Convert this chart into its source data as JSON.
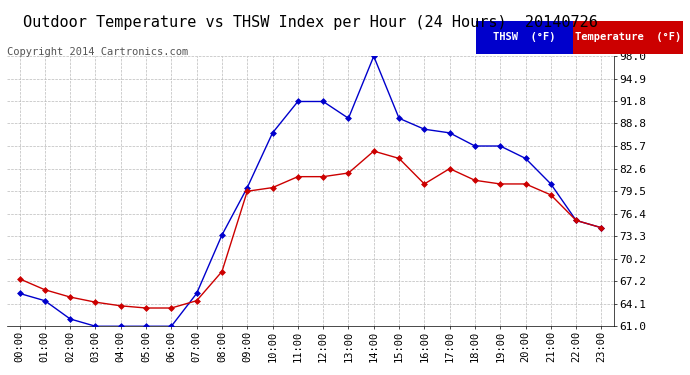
{
  "title": "Outdoor Temperature vs THSW Index per Hour (24 Hours)  20140726",
  "copyright": "Copyright 2014 Cartronics.com",
  "hours": [
    "00:00",
    "01:00",
    "02:00",
    "03:00",
    "04:00",
    "05:00",
    "06:00",
    "07:00",
    "08:00",
    "09:00",
    "10:00",
    "11:00",
    "12:00",
    "13:00",
    "14:00",
    "15:00",
    "16:00",
    "17:00",
    "18:00",
    "19:00",
    "20:00",
    "21:00",
    "22:00",
    "23:00"
  ],
  "thsw": [
    65.5,
    64.5,
    62.0,
    61.0,
    61.0,
    61.0,
    61.0,
    65.5,
    73.5,
    80.0,
    87.5,
    91.8,
    91.8,
    89.5,
    98.0,
    89.5,
    88.0,
    87.5,
    85.7,
    85.7,
    84.0,
    80.5,
    75.5,
    74.5
  ],
  "temp": [
    67.5,
    66.0,
    65.0,
    64.3,
    63.8,
    63.5,
    63.5,
    64.5,
    68.5,
    79.5,
    80.0,
    81.5,
    81.5,
    82.0,
    85.0,
    84.0,
    80.5,
    82.6,
    81.0,
    80.5,
    80.5,
    79.0,
    75.5,
    74.5
  ],
  "thsw_color": "#0000cc",
  "temp_color": "#cc0000",
  "bg_color": "#ffffff",
  "grid_color": "#bbbbbb",
  "ylim_min": 61.0,
  "ylim_max": 98.0,
  "yticks": [
    61.0,
    64.1,
    67.2,
    70.2,
    73.3,
    76.4,
    79.5,
    82.6,
    85.7,
    88.8,
    91.8,
    94.9,
    98.0
  ],
  "legend_thsw_bg": "#0000cc",
  "legend_temp_bg": "#cc0000",
  "legend_thsw_label": "THSW  (°F)",
  "legend_temp_label": "Temperature  (°F)",
  "title_fontsize": 11,
  "copyright_fontsize": 7.5,
  "tick_fontsize": 8,
  "xtick_fontsize": 7.5
}
